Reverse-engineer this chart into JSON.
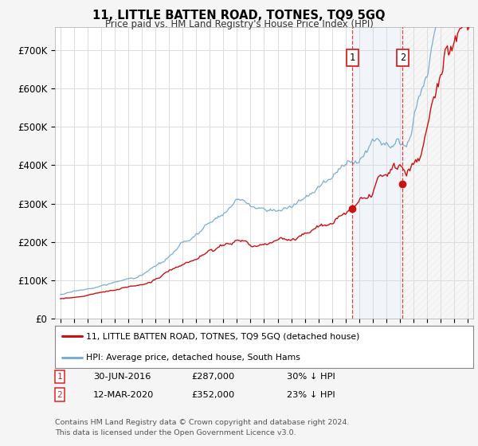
{
  "title": "11, LITTLE BATTEN ROAD, TOTNES, TQ9 5GQ",
  "subtitle": "Price paid vs. HM Land Registry's House Price Index (HPI)",
  "ylabel_ticks": [
    "£0",
    "£100K",
    "£200K",
    "£300K",
    "£400K",
    "£500K",
    "£600K",
    "£700K"
  ],
  "ytick_values": [
    0,
    100000,
    200000,
    300000,
    400000,
    500000,
    600000,
    700000
  ],
  "ylim": [
    0,
    760000
  ],
  "xlim_start": 1994.6,
  "xlim_end": 2025.4,
  "hpi_color": "#7aaed4",
  "price_color": "#cc1111",
  "marker1_date": 2016.5,
  "marker2_date": 2020.2,
  "marker1_price": 287000,
  "marker2_price": 352000,
  "legend_line1": "11, LITTLE BATTEN ROAD, TOTNES, TQ9 5GQ (detached house)",
  "legend_line2": "HPI: Average price, detached house, South Hams",
  "footer1": "Contains HM Land Registry data © Crown copyright and database right 2024.",
  "footer2": "This data is licensed under the Open Government Licence v3.0.",
  "table_row1": [
    "1",
    "30-JUN-2016",
    "£287,000",
    "30% ↓ HPI"
  ],
  "table_row2": [
    "2",
    "12-MAR-2020",
    "£352,000",
    "23% ↓ HPI"
  ],
  "background_color": "#f5f5f5",
  "plot_bg_color": "#ffffff",
  "grid_color": "#dddddd",
  "dashed_line_color": "#dd2222",
  "shade_color": "#c8d8ee",
  "hatch_color": "#cccccc"
}
